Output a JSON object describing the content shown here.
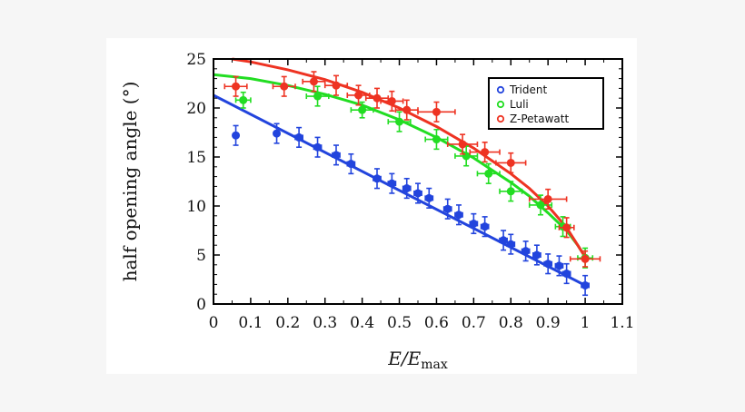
{
  "chart_data": {
    "type": "scatter",
    "xlabel": "E/E",
    "xlabel_sub": "max",
    "ylabel": "half opening angle (°)",
    "xlim": [
      0,
      1.1
    ],
    "ylim": [
      0,
      25
    ],
    "xticks": [
      "0",
      "0.1",
      "0.2",
      "0.3",
      "0.4",
      "0.5",
      "0.6",
      "0.7",
      "0.8",
      "0.9",
      "1",
      "1.1"
    ],
    "yticks": [
      "0",
      "5",
      "10",
      "15",
      "20",
      "25"
    ],
    "legend_position": "top-right",
    "series": [
      {
        "name": "Trident",
        "color": "#2244dd",
        "points": [
          {
            "x": 0.06,
            "y": 17.2,
            "ex": 0.005,
            "ey": 1.0
          },
          {
            "x": 0.17,
            "y": 17.4,
            "ex": 0.005,
            "ey": 1.0
          },
          {
            "x": 0.23,
            "y": 17.0,
            "ex": 0.01,
            "ey": 1.0
          },
          {
            "x": 0.28,
            "y": 16.0,
            "ex": 0.01,
            "ey": 1.0
          },
          {
            "x": 0.33,
            "y": 15.2,
            "ex": 0.01,
            "ey": 1.0
          },
          {
            "x": 0.37,
            "y": 14.3,
            "ex": 0.01,
            "ey": 1.0
          },
          {
            "x": 0.44,
            "y": 12.8,
            "ex": 0.01,
            "ey": 1.0
          },
          {
            "x": 0.48,
            "y": 12.3,
            "ex": 0.01,
            "ey": 1.0
          },
          {
            "x": 0.52,
            "y": 11.8,
            "ex": 0.01,
            "ey": 1.0
          },
          {
            "x": 0.55,
            "y": 11.3,
            "ex": 0.01,
            "ey": 1.0
          },
          {
            "x": 0.58,
            "y": 10.8,
            "ex": 0.01,
            "ey": 1.0
          },
          {
            "x": 0.63,
            "y": 9.7,
            "ex": 0.01,
            "ey": 1.0
          },
          {
            "x": 0.66,
            "y": 9.1,
            "ex": 0.01,
            "ey": 1.0
          },
          {
            "x": 0.7,
            "y": 8.2,
            "ex": 0.01,
            "ey": 1.0
          },
          {
            "x": 0.73,
            "y": 7.9,
            "ex": 0.01,
            "ey": 1.0
          },
          {
            "x": 0.78,
            "y": 6.5,
            "ex": 0.01,
            "ey": 1.0
          },
          {
            "x": 0.8,
            "y": 6.1,
            "ex": 0.01,
            "ey": 1.0
          },
          {
            "x": 0.84,
            "y": 5.4,
            "ex": 0.01,
            "ey": 1.0
          },
          {
            "x": 0.87,
            "y": 5.0,
            "ex": 0.01,
            "ey": 1.0
          },
          {
            "x": 0.9,
            "y": 4.1,
            "ex": 0.01,
            "ey": 1.0
          },
          {
            "x": 0.93,
            "y": 3.9,
            "ex": 0.01,
            "ey": 1.0
          },
          {
            "x": 0.95,
            "y": 3.1,
            "ex": 0.01,
            "ey": 1.0
          },
          {
            "x": 1.0,
            "y": 1.9,
            "ex": 0.01,
            "ey": 1.0
          }
        ],
        "fit": [
          [
            0,
            21.3
          ],
          [
            1.0,
            1.9
          ]
        ]
      },
      {
        "name": "Luli",
        "color": "#22dd22",
        "points": [
          {
            "x": 0.08,
            "y": 20.8,
            "ex": 0.02,
            "ey": 0.8
          },
          {
            "x": 0.28,
            "y": 21.2,
            "ex": 0.03,
            "ey": 1.0
          },
          {
            "x": 0.4,
            "y": 19.8,
            "ex": 0.03,
            "ey": 0.8
          },
          {
            "x": 0.5,
            "y": 18.6,
            "ex": 0.03,
            "ey": 1.0
          },
          {
            "x": 0.6,
            "y": 16.8,
            "ex": 0.03,
            "ey": 1.0
          },
          {
            "x": 0.68,
            "y": 15.1,
            "ex": 0.03,
            "ey": 1.0
          },
          {
            "x": 0.74,
            "y": 13.3,
            "ex": 0.03,
            "ey": 1.0
          },
          {
            "x": 0.8,
            "y": 11.5,
            "ex": 0.03,
            "ey": 1.0
          },
          {
            "x": 0.88,
            "y": 10.1,
            "ex": 0.03,
            "ey": 1.0
          },
          {
            "x": 0.94,
            "y": 7.9,
            "ex": 0.02,
            "ey": 1.0
          },
          {
            "x": 1.0,
            "y": 4.7,
            "ex": 0.02,
            "ey": 1.0
          }
        ]
      },
      {
        "name": "Z-Petawatt",
        "color": "#ee3322",
        "points": [
          {
            "x": 0.06,
            "y": 22.2,
            "ex": 0.03,
            "ey": 1.0
          },
          {
            "x": 0.19,
            "y": 22.2,
            "ex": 0.03,
            "ey": 1.0
          },
          {
            "x": 0.27,
            "y": 22.7,
            "ex": 0.03,
            "ey": 1.0
          },
          {
            "x": 0.33,
            "y": 22.3,
            "ex": 0.03,
            "ey": 1.0
          },
          {
            "x": 0.39,
            "y": 21.3,
            "ex": 0.03,
            "ey": 1.0
          },
          {
            "x": 0.44,
            "y": 21.0,
            "ex": 0.03,
            "ey": 1.0
          },
          {
            "x": 0.48,
            "y": 20.7,
            "ex": 0.03,
            "ey": 1.0
          },
          {
            "x": 0.52,
            "y": 19.8,
            "ex": 0.03,
            "ey": 1.0
          },
          {
            "x": 0.6,
            "y": 19.6,
            "ex": 0.05,
            "ey": 1.0
          },
          {
            "x": 0.67,
            "y": 16.3,
            "ex": 0.04,
            "ey": 1.0
          },
          {
            "x": 0.73,
            "y": 15.5,
            "ex": 0.04,
            "ey": 1.0
          },
          {
            "x": 0.8,
            "y": 14.4,
            "ex": 0.04,
            "ey": 1.0
          },
          {
            "x": 0.9,
            "y": 10.7,
            "ex": 0.05,
            "ey": 1.0
          },
          {
            "x": 0.95,
            "y": 7.8,
            "ex": 0.02,
            "ey": 1.0
          },
          {
            "x": 1.0,
            "y": 4.6,
            "ex": 0.04,
            "ey": 0.8
          }
        ]
      }
    ],
    "fit_curves": [
      {
        "color": "#22dd22",
        "points": [
          [
            0,
            23.4
          ],
          [
            0.1,
            23.0
          ],
          [
            0.2,
            22.3
          ],
          [
            0.3,
            21.4
          ],
          [
            0.4,
            20.3
          ],
          [
            0.5,
            18.8
          ],
          [
            0.6,
            17.0
          ],
          [
            0.7,
            14.9
          ],
          [
            0.8,
            12.4
          ],
          [
            0.85,
            11.0
          ],
          [
            0.9,
            9.3
          ],
          [
            0.95,
            7.5
          ],
          [
            0.98,
            6.0
          ],
          [
            1.0,
            4.8
          ]
        ]
      },
      {
        "color": "#ee3322",
        "points": [
          [
            0.05,
            25.0
          ],
          [
            0.1,
            24.7
          ],
          [
            0.2,
            23.9
          ],
          [
            0.3,
            22.9
          ],
          [
            0.4,
            21.6
          ],
          [
            0.5,
            20.0
          ],
          [
            0.6,
            18.1
          ],
          [
            0.7,
            15.9
          ],
          [
            0.8,
            13.3
          ],
          [
            0.85,
            11.8
          ],
          [
            0.9,
            10.0
          ],
          [
            0.95,
            7.8
          ],
          [
            0.98,
            6.0
          ],
          [
            1.0,
            4.8
          ]
        ]
      }
    ]
  }
}
